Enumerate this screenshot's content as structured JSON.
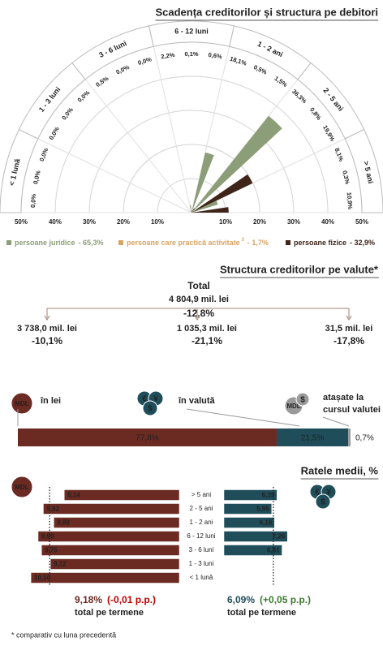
{
  "chart_data": [
    {
      "type": "polar",
      "title": "Scadența creditorilor și structura pe debitori",
      "categories": [
        "< 1 lună",
        "1 - 3 luni",
        "3 - 6 luni",
        "6 - 12 luni",
        "1 - 2 ani",
        "2 - 5 ani",
        "> 5 ani"
      ],
      "series": [
        {
          "name": "persoane juridice",
          "share": "- 65,3%",
          "color": "#8b9e78",
          "values": [
            0.0,
            0.0,
            0.5,
            2.2,
            18.1,
            36.3,
            8.1
          ],
          "value_labels": [
            "0,0%",
            "0,0%",
            "0,5%",
            "2,2%",
            "18,1%",
            "36,3%",
            "8,1%"
          ]
        },
        {
          "name": "persoane care practică activitate",
          "note": "3",
          "share": "- 1,7%",
          "color": "#d8a463",
          "values": [
            0.0,
            0.0,
            0.0,
            0.1,
            0.5,
            0.8,
            0.3
          ],
          "value_labels": [
            "0,0%",
            "0,0%",
            "0,0%",
            "0,1%",
            "0,5%",
            "0,8%",
            "0,3%"
          ]
        },
        {
          "name": "persoane fizice",
          "share": "- 32,9%",
          "color": "#3e2419",
          "values": [
            0.0,
            0.0,
            0.0,
            0.6,
            1.5,
            19.9,
            10.9
          ],
          "value_labels": [
            "0,0%",
            "0,0%",
            "0,0%",
            "0,6%",
            "1,5%",
            "19,9%",
            "10,9%"
          ]
        }
      ],
      "rlim": [
        0,
        50
      ],
      "rticks": [
        {
          "value": 10,
          "label": "10%"
        },
        {
          "value": 20,
          "label": "20%"
        },
        {
          "value": 30,
          "label": "30%"
        },
        {
          "value": 40,
          "label": "40%"
        },
        {
          "value": 50,
          "label": "50%"
        }
      ],
      "grid": true
    },
    {
      "type": "stacked-bar",
      "title": "Structura creditorilor pe valute*",
      "total": {
        "label": "Total",
        "amount": "4 804,9 mil. lei",
        "change": "-12,8%"
      },
      "series": [
        {
          "name": [
            "în lei"
          ],
          "icon": [
            "MDL"
          ],
          "color": "#6b2a22",
          "values": [
            77.8
          ],
          "value_labels": [
            "77,8%"
          ],
          "amount": "3 738,0 mil. lei",
          "change": "-10,1%"
        },
        {
          "name": [
            "în valută"
          ],
          "icon": [
            "€",
            "¥",
            "$"
          ],
          "color": "#1f4e5a",
          "values": [
            21.5
          ],
          "value_labels": [
            "21,5%"
          ],
          "amount": "1 035,3 mil. lei",
          "change": "-21,1%"
        },
        {
          "name": [
            "atașate la",
            "cursul valutei"
          ],
          "icon": [
            "MDL",
            "$"
          ],
          "color": "#9a9a9a",
          "values": [
            0.7
          ],
          "value_labels": [
            "0,7%"
          ],
          "amount": "31,5 mil. lei",
          "change": "-17,8%"
        }
      ],
      "xlim": [
        0,
        100
      ]
    },
    {
      "type": "butterfly",
      "title": "Ratele medii, %",
      "categories": [
        "> 5 ani",
        "2 - 5 ani",
        "1 - 2 ani",
        "6 - 12 luni",
        "3 - 6 luni",
        "1 - 3 luni",
        "< 1 lună"
      ],
      "series": [
        {
          "icon": [
            "MDL"
          ],
          "color": "#6b2a22",
          "values": [
            8.14,
            9.62,
            8.88,
            9.99,
            9.75,
            9.12,
            10.5
          ],
          "value_labels": [
            "8,14",
            "9,62",
            "8,88",
            "9,99",
            "9,75",
            "9,12",
            "10,50"
          ],
          "xlim": [
            0,
            12
          ],
          "total": 9.18,
          "total_label": "9,18%",
          "change": "(-0,01 p.p.)",
          "change_color": "#c00000",
          "caption": "total pe termene"
        },
        {
          "icon": [
            "€",
            "¥",
            "$"
          ],
          "color": "#1f4e5a",
          "values": [
            6.39,
            5.95,
            6.18,
            7.26,
            6.81,
            null,
            null
          ],
          "value_labels": [
            "6,39",
            "5,95",
            "6,18",
            "7,26",
            "6,81",
            null,
            null
          ],
          "xlim": [
            2,
            10
          ],
          "total": 6.09,
          "total_label": "6,09%",
          "change": "(+0,05 p.p.)",
          "change_color": "#3c7a2e",
          "caption": "total pe termene"
        }
      ]
    }
  ],
  "footnote": "* comparativ cu luna precedentă"
}
